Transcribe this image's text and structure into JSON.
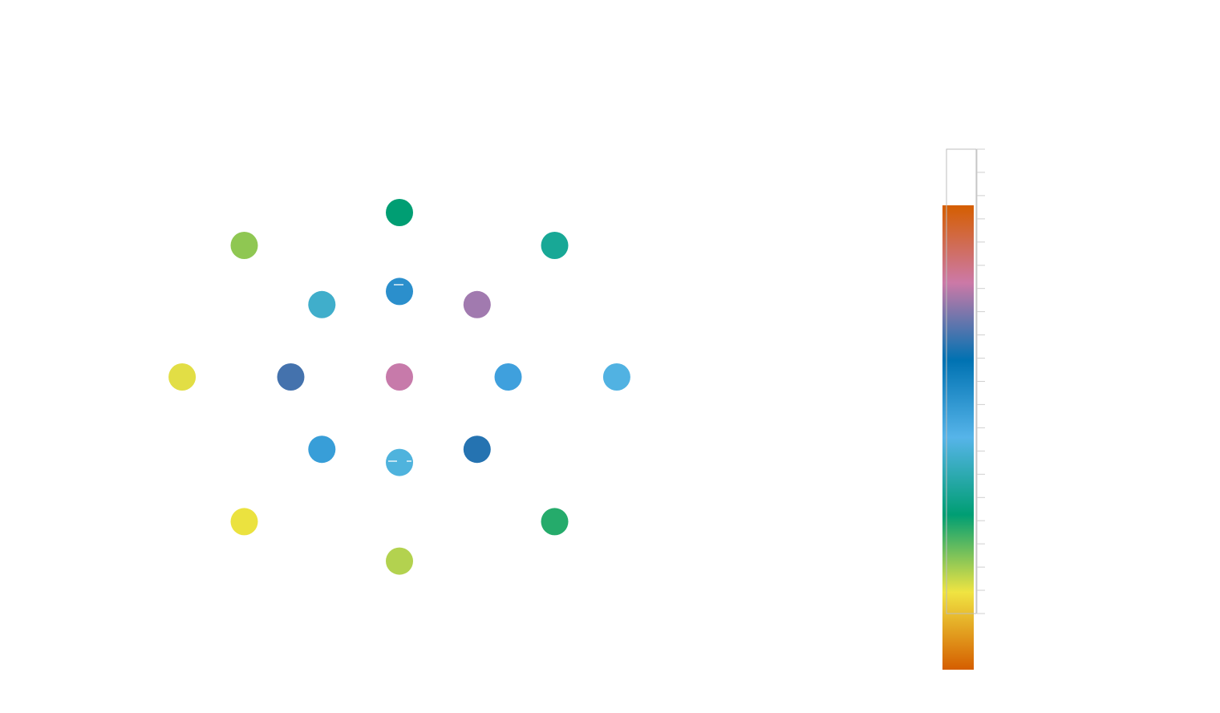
{
  "chart_data": {
    "type": "scatter",
    "title": "",
    "xlabel": "",
    "ylabel": "",
    "grid": false,
    "legend": "none",
    "points": [
      {
        "x": 0,
        "y": 2.5,
        "color": "#009e73"
      },
      {
        "x": -2.5,
        "y": 2.0,
        "color": "#8fc752"
      },
      {
        "x": 2.5,
        "y": 2.0,
        "color": "#18a896"
      },
      {
        "x": 0,
        "y": 1.3,
        "color": "#2b8fcc"
      },
      {
        "x": -1.25,
        "y": 1.1,
        "color": "#40aecb"
      },
      {
        "x": 1.25,
        "y": 1.1,
        "color": "#a17aaf"
      },
      {
        "x": -3.5,
        "y": 0,
        "color": "#e2de45"
      },
      {
        "x": -1.75,
        "y": 0,
        "color": "#4472ad"
      },
      {
        "x": 0,
        "y": 0,
        "color": "#c77aaa"
      },
      {
        "x": 1.75,
        "y": 0,
        "color": "#3fa0dd"
      },
      {
        "x": 3.5,
        "y": 0,
        "color": "#51b2e2"
      },
      {
        "x": -1.25,
        "y": -1.1,
        "color": "#389ed8"
      },
      {
        "x": 1.25,
        "y": -1.1,
        "color": "#2573b1"
      },
      {
        "x": 0,
        "y": -1.3,
        "color": "#4fb3dd"
      },
      {
        "x": -2.5,
        "y": -2.2,
        "color": "#ebe23f"
      },
      {
        "x": 2.5,
        "y": -2.2,
        "color": "#25ab6b"
      },
      {
        "x": 0,
        "y": -2.8,
        "color": "#b3d24f"
      }
    ],
    "colorbar": {
      "orientation": "vertical",
      "placement": "right",
      "colors": [
        "#d55e00",
        "#cc79a7",
        "#0072b2",
        "#56b4e9",
        "#009e73",
        "#f0e442",
        "#d55e00"
      ]
    }
  }
}
